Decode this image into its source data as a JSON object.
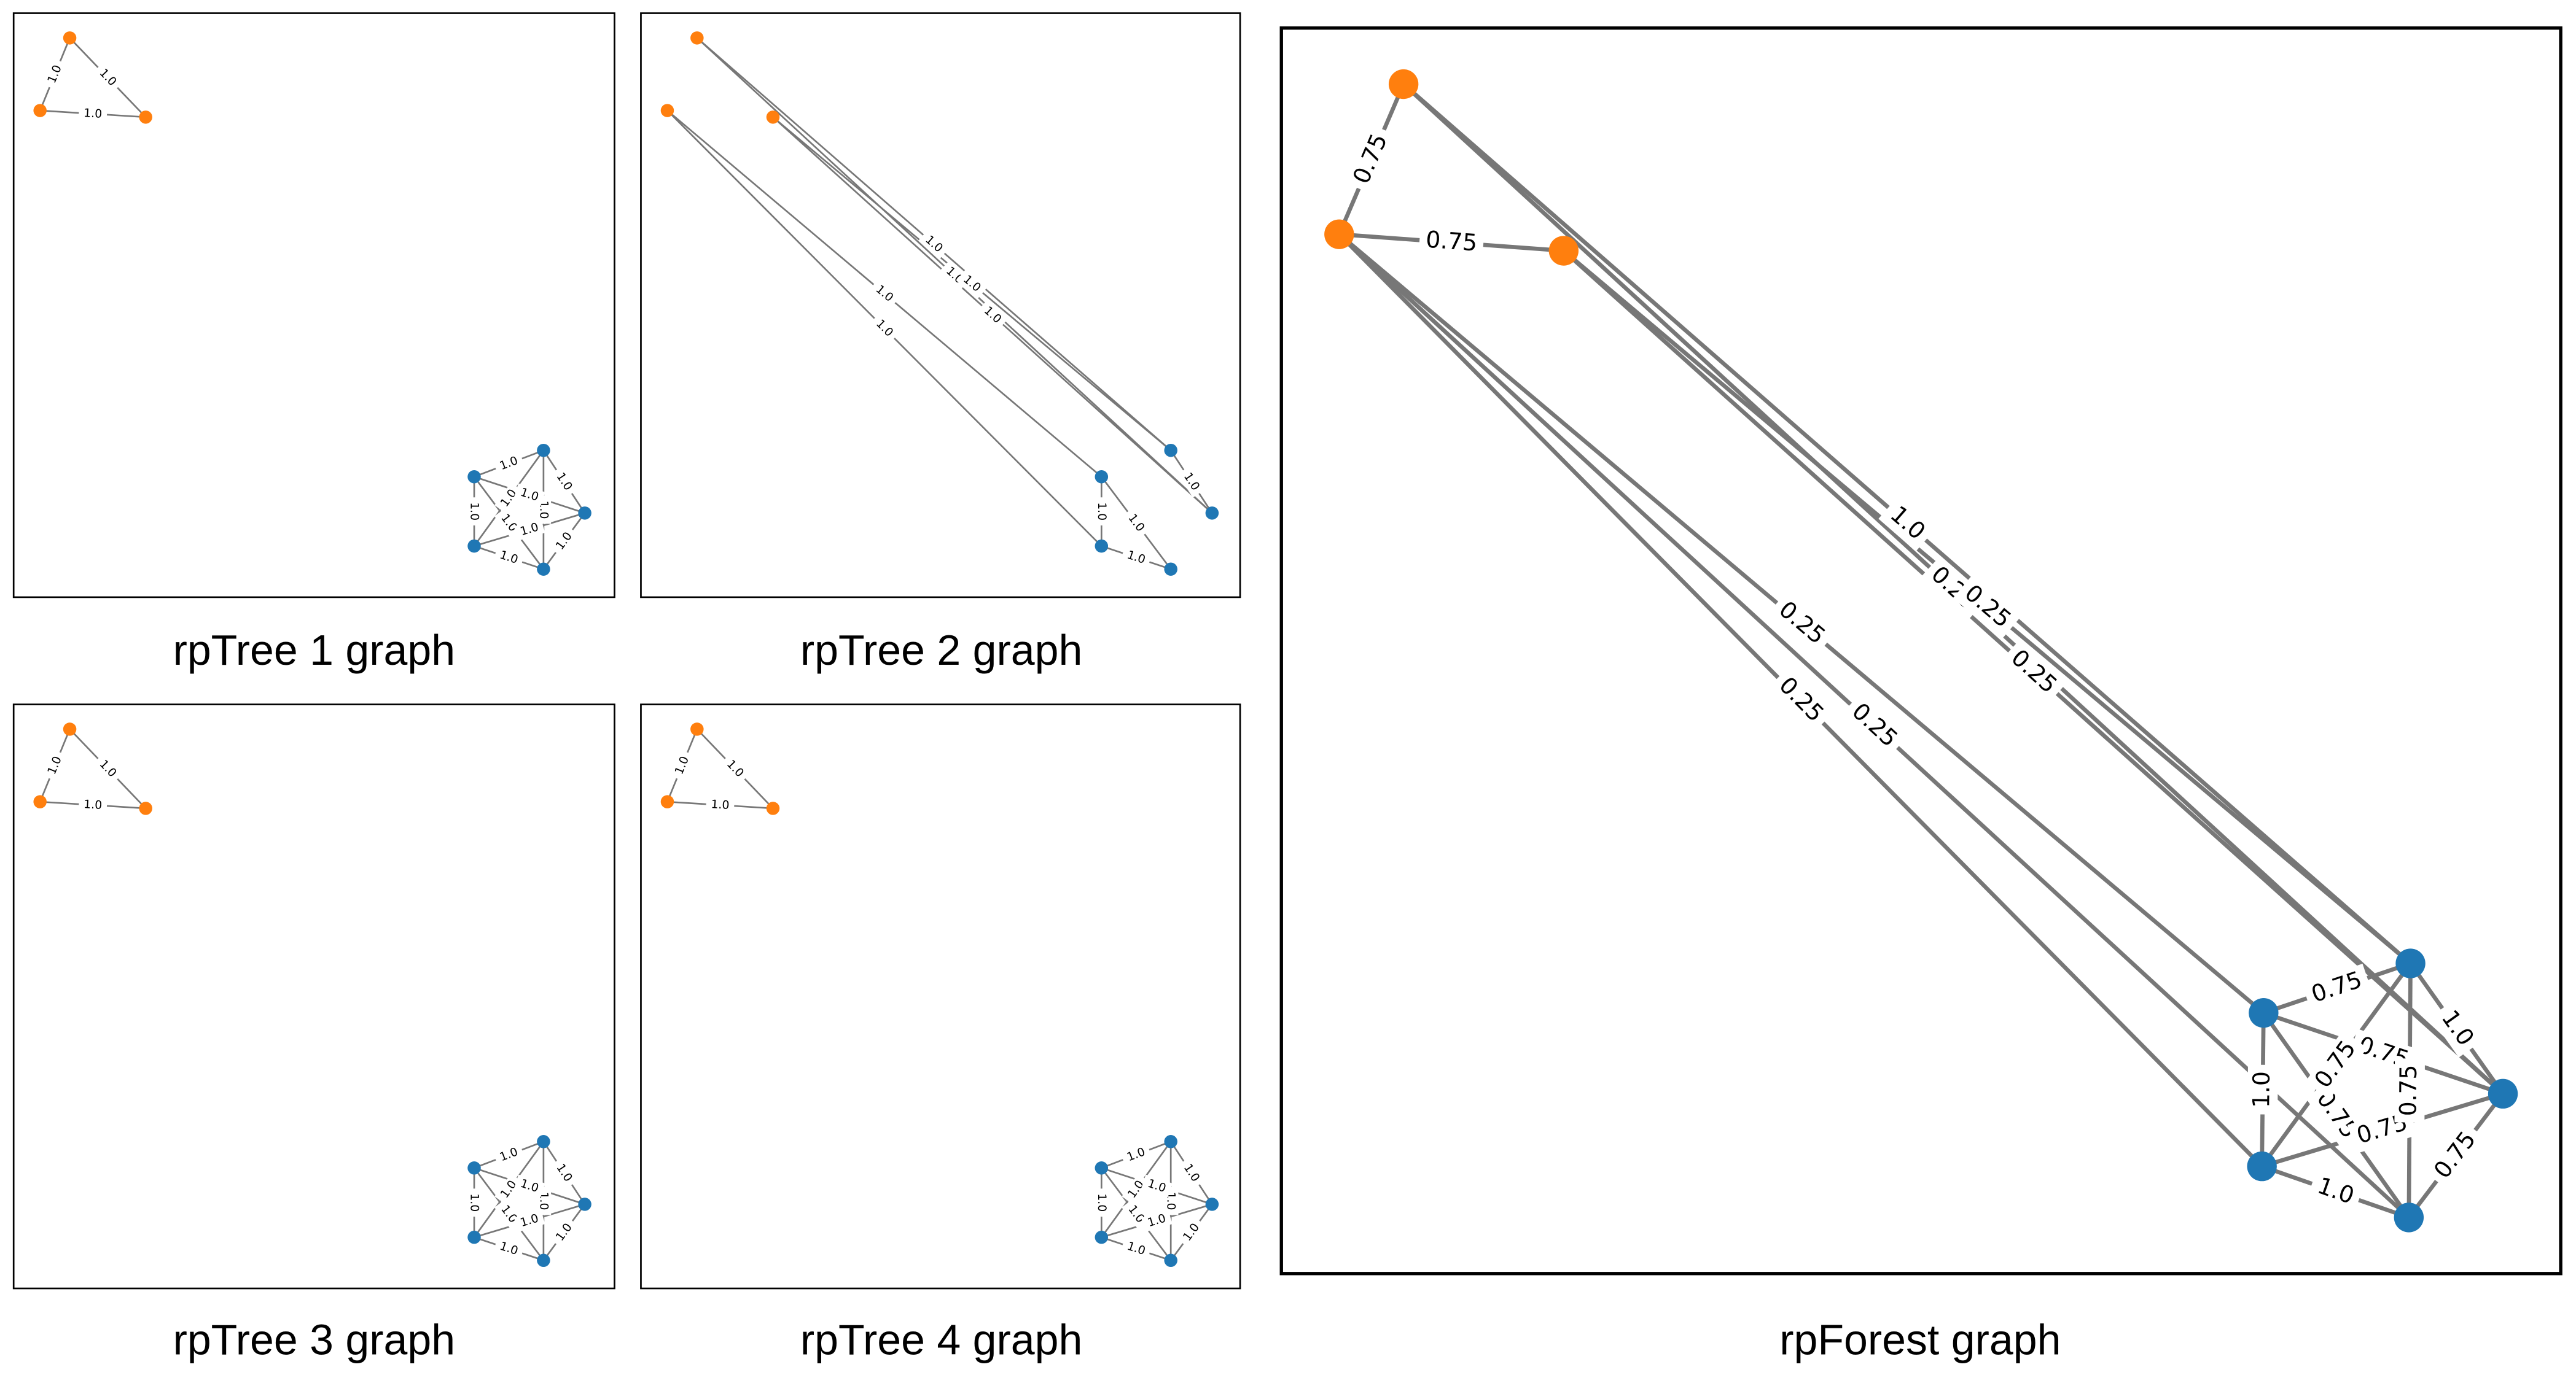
{
  "panels": [
    {
      "title": "rpTree 1 graph",
      "edges": [
        {
          "label": "1.0"
        },
        {
          "label": "1.0"
        },
        {
          "label": "1.0"
        },
        {
          "label": "1.0"
        },
        {
          "label": "1.0"
        },
        {
          "label": "1.0"
        },
        {
          "label": "1.0"
        },
        {
          "label": "1.0"
        },
        {
          "label": "1.0"
        },
        {
          "label": "1.0"
        },
        {
          "label": "1.0"
        },
        {
          "label": "1.0"
        },
        {
          "label": "1.0"
        }
      ]
    },
    {
      "title": "rpTree 2 graph",
      "edges": [
        {
          "label": "1.0"
        },
        {
          "label": "1.0"
        },
        {
          "label": "1.0"
        },
        {
          "label": "1.0"
        },
        {
          "label": "1.0"
        },
        {
          "label": "1.0"
        },
        {
          "label": "1.0"
        },
        {
          "label": "1.0"
        },
        {
          "label": "1.0"
        },
        {
          "label": "1.0"
        }
      ]
    },
    {
      "title": "rpTree 3 graph",
      "edges": [
        {
          "label": "1.0"
        },
        {
          "label": "1.0"
        },
        {
          "label": "1.0"
        },
        {
          "label": "1.0"
        },
        {
          "label": "1.0"
        },
        {
          "label": "1.0"
        },
        {
          "label": "1.0"
        },
        {
          "label": "1.0"
        },
        {
          "label": "1.0"
        },
        {
          "label": "1.0"
        },
        {
          "label": "1.0"
        },
        {
          "label": "1.0"
        },
        {
          "label": "1.0"
        }
      ]
    },
    {
      "title": "rpTree 4 graph",
      "edges": [
        {
          "label": "1.0"
        },
        {
          "label": "1.0"
        },
        {
          "label": "1.0"
        },
        {
          "label": "1.0"
        },
        {
          "label": "1.0"
        },
        {
          "label": "1.0"
        },
        {
          "label": "1.0"
        },
        {
          "label": "1.0"
        },
        {
          "label": "1.0"
        },
        {
          "label": "1.0"
        },
        {
          "label": "1.0"
        },
        {
          "label": "1.0"
        },
        {
          "label": "1.0"
        }
      ]
    },
    {
      "title": "rpForest graph",
      "edges": [
        {
          "label": "0.75"
        },
        {
          "label": "1.0"
        },
        {
          "label": "0.75"
        },
        {
          "label": "0.25"
        },
        {
          "label": "0.25"
        },
        {
          "label": "0.25"
        },
        {
          "label": "0.25"
        },
        {
          "label": "0.25"
        },
        {
          "label": "0.25"
        },
        {
          "label": "0.75"
        },
        {
          "label": "1.0"
        },
        {
          "label": "1.0"
        },
        {
          "label": "0.75"
        },
        {
          "label": "0.75"
        },
        {
          "label": "1.0"
        },
        {
          "label": "0.75"
        },
        {
          "label": "0.75"
        },
        {
          "label": "0.75"
        },
        {
          "label": "0.75"
        }
      ]
    }
  ]
}
